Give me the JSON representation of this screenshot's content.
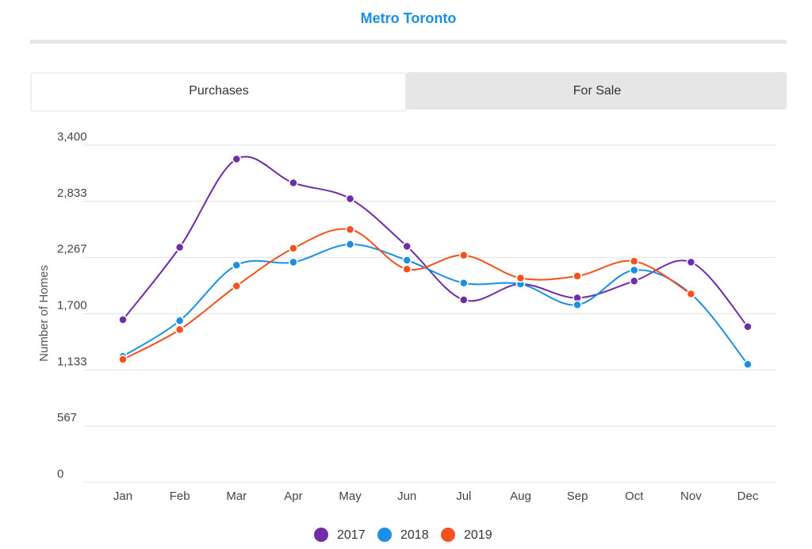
{
  "header": {
    "title": "Metro Toronto"
  },
  "tabs": [
    "Purchases",
    "For Sale"
  ],
  "chart_data": {
    "type": "line",
    "y_label": "Number of Homes",
    "categories": [
      "Jan",
      "Feb",
      "Mar",
      "Apr",
      "May",
      "Jun",
      "Jul",
      "Aug",
      "Sep",
      "Oct",
      "Nov",
      "Dec"
    ],
    "series": [
      {
        "name": "2017",
        "color": "#6f2da8",
        "values": [
          1640,
          2370,
          3260,
          3020,
          2860,
          2380,
          1840,
          2000,
          1860,
          2030,
          2220,
          1570
        ]
      },
      {
        "name": "2018",
        "color": "#1a8fe3",
        "values": [
          1270,
          1630,
          2190,
          2220,
          2400,
          2240,
          2010,
          2000,
          1790,
          2140,
          1900,
          1190
        ]
      },
      {
        "name": "2019",
        "color": "#f4511e",
        "values": [
          1240,
          1540,
          1980,
          2360,
          2550,
          2150,
          2290,
          2060,
          2080,
          2230,
          1900,
          null
        ]
      }
    ],
    "ylim": [
      0,
      3400
    ],
    "yticks": [
      0,
      567,
      {
        "value": 1133,
        "label": "1,133"
      },
      {
        "value": 1700,
        "label": "1,700"
      },
      {
        "value": 2267,
        "label": "2,267"
      },
      {
        "value": 2833,
        "label": "2,833"
      },
      {
        "value": 3400,
        "label": "3,400"
      }
    ],
    "grid": true,
    "legend": "bottom"
  }
}
